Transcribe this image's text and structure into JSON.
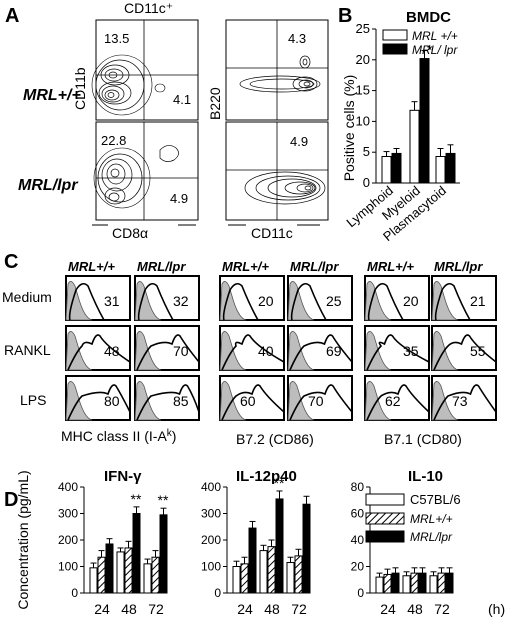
{
  "panel_a": {
    "label": "A",
    "gate_label": "CD11c⁺",
    "row_labels": [
      "MRL+/+",
      "MRL/lpr"
    ],
    "col1_xlabel": "CD8α",
    "col1_ylabel": "CD11b",
    "col2_xlabel": "CD11c",
    "col2_ylabel": "B220",
    "plots": [
      {
        "q1": "13.5",
        "q2": "4.1"
      },
      {
        "q1": "4.3"
      },
      {
        "q1": "22.8",
        "q2": "4.9"
      },
      {
        "q1": "4.9"
      }
    ]
  },
  "panel_b": {
    "label": "B",
    "chart_data": {
      "type": "bar",
      "title": "BMDC",
      "ylabel": "Positive cells (%)",
      "ylim": [
        0,
        25
      ],
      "yticks": [
        0,
        5,
        10,
        15,
        20,
        25
      ],
      "categories": [
        "Lymphoid",
        "Myeloid",
        "Plasmacytoid"
      ],
      "series": [
        {
          "name": "MRL +/+",
          "values": [
            4.3,
            11.8,
            4.3
          ],
          "errors": [
            0.8,
            1.4,
            1.3
          ],
          "color": "#ffffff"
        },
        {
          "name": "MRL/ lpr",
          "values": [
            4.8,
            20.2,
            4.8
          ],
          "errors": [
            0.8,
            1.3,
            1.4
          ],
          "color": "#000000"
        }
      ],
      "annotations": [
        {
          "category": "Myeloid",
          "series": "MRL/ lpr",
          "text": "*"
        }
      ]
    }
  },
  "panel_c": {
    "label": "C",
    "row_labels": [
      "Medium",
      "RANKL",
      "LPS"
    ],
    "groups": [
      {
        "xlabel": "MHC class II (I-A",
        "xlabel_sup": "k",
        "xlabel_end": ")",
        "headers": [
          "MRL+/+",
          "MRL/lpr"
        ],
        "values": [
          [
            "31",
            "32"
          ],
          [
            "48",
            "70"
          ],
          [
            "80",
            "85"
          ]
        ]
      },
      {
        "xlabel": "B7.2 (CD86)",
        "headers": [
          "MRL+/+",
          "MRL/lpr"
        ],
        "values": [
          [
            "20",
            "25"
          ],
          [
            "40",
            "69"
          ],
          [
            "60",
            "70"
          ]
        ]
      },
      {
        "xlabel": "B7.1 (CD80)",
        "headers": [
          "MRL+/+",
          "MRL/lpr"
        ],
        "values": [
          [
            "20",
            "21"
          ],
          [
            "35",
            "55"
          ],
          [
            "62",
            "73"
          ]
        ]
      }
    ]
  },
  "panel_d": {
    "label": "D",
    "ylabel": "Concentration (pg/mL)",
    "hour_unit": "(h)",
    "legend": [
      "C57BL/6",
      "MRL+/+",
      "MRL/lpr"
    ],
    "chart_data": [
      {
        "type": "bar",
        "title": "IFN-γ",
        "categories": [
          "24",
          "48",
          "72"
        ],
        "ylim": [
          0,
          400
        ],
        "yticks": [
          0,
          100,
          200,
          300,
          400
        ],
        "series": [
          {
            "name": "C57BL/6",
            "values": [
              95,
              155,
              110
            ],
            "errors": [
              18,
              15,
              18
            ]
          },
          {
            "name": "MRL+/+",
            "values": [
              135,
              170,
              135
            ],
            "errors": [
              25,
              25,
              25
            ]
          },
          {
            "name": "MRL/lpr",
            "values": [
              185,
              300,
              295
            ],
            "errors": [
              20,
              25,
              25
            ]
          }
        ],
        "annotations": [
          {
            "category": "48",
            "text": "**"
          },
          {
            "category": "72",
            "text": "**"
          }
        ]
      },
      {
        "type": "bar",
        "title": "IL-12p40",
        "categories": [
          "24",
          "48",
          "72"
        ],
        "ylim": [
          0,
          400
        ],
        "yticks": [
          0,
          100,
          200,
          300,
          400
        ],
        "series": [
          {
            "name": "C57BL/6",
            "values": [
              100,
              160,
              115
            ],
            "errors": [
              20,
              20,
              20
            ]
          },
          {
            "name": "MRL+/+",
            "values": [
              110,
              175,
              140
            ],
            "errors": [
              25,
              25,
              25
            ]
          },
          {
            "name": "MRL/lpr",
            "values": [
              245,
              355,
              335
            ],
            "errors": [
              25,
              30,
              30
            ]
          }
        ],
        "annotations": [
          {
            "category": "48",
            "text": "**"
          }
        ]
      },
      {
        "type": "bar",
        "title": "IL-10",
        "categories": [
          "24",
          "48",
          "72"
        ],
        "ylim": [
          0,
          80
        ],
        "yticks": [
          0,
          20,
          40,
          60,
          80
        ],
        "series": [
          {
            "name": "C57BL/6",
            "values": [
              12,
              13,
              13
            ],
            "errors": [
              3,
              3,
              3
            ]
          },
          {
            "name": "MRL+/+",
            "values": [
              14,
              15,
              15
            ],
            "errors": [
              4,
              4,
              4
            ]
          },
          {
            "name": "MRL/lpr",
            "values": [
              15,
              15,
              15
            ],
            "errors": [
              4,
              4,
              4
            ]
          }
        ]
      }
    ]
  }
}
